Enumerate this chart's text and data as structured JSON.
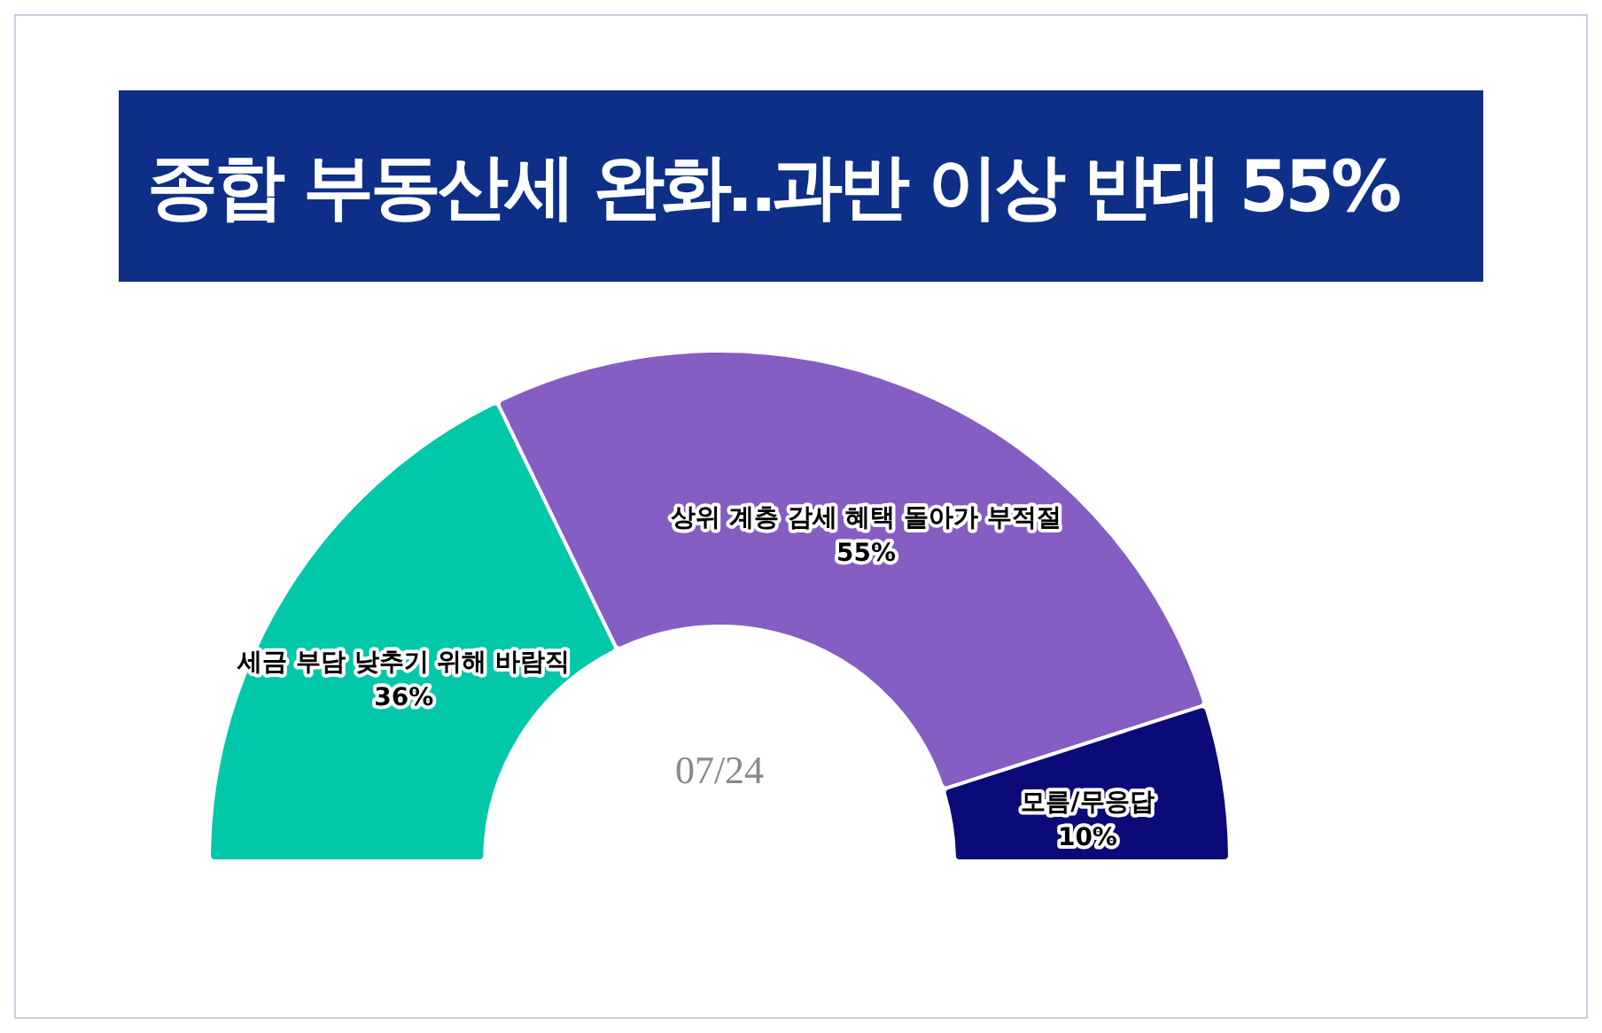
{
  "chart_data": {
    "type": "donut",
    "title": "종합 부동산세 완화‥과반 이상 반대 55%",
    "categories": [
      "세금 부담 낮추기 위해 바람직",
      "상위 계층 감세 혜택 돌아가 부적절",
      "모름/무응답"
    ],
    "values": [
      36,
      55,
      10
    ],
    "value_labels": [
      "36%",
      "55%",
      "10%"
    ],
    "colors": [
      "#00c8a8",
      "#845ec2",
      "#0a0a78"
    ],
    "annotations": [
      "07/24"
    ]
  }
}
